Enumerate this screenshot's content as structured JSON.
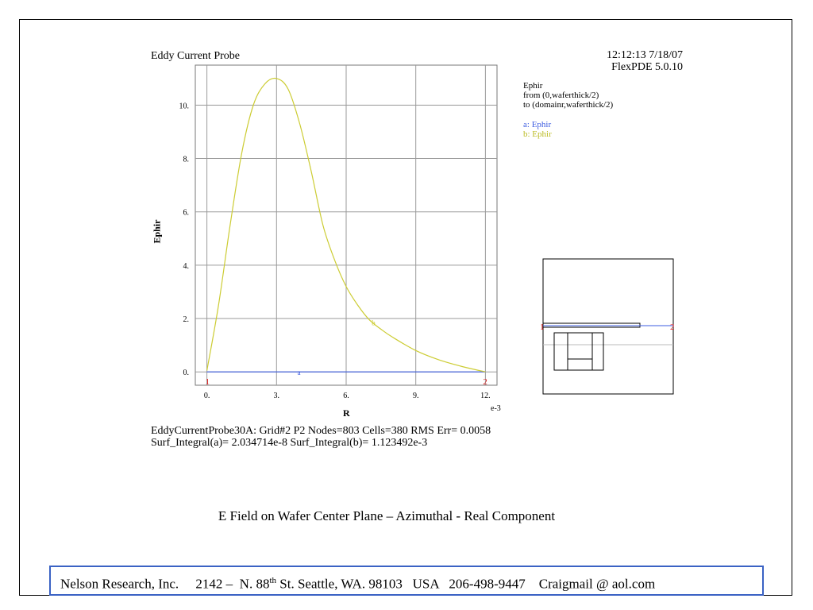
{
  "chart_data": {
    "type": "line",
    "title": "Eddy Current Probe",
    "timestamp": "12:12:13 7/18/07",
    "software": "FlexPDE 5.0.10",
    "xlabel": "R",
    "ylabel": "Ephir",
    "x_exponent": "e-3",
    "xlim": [
      -0.0005,
      0.0125
    ],
    "ylim": [
      -0.5,
      11.5
    ],
    "x_ticks": [
      0,
      0.003,
      0.006,
      0.009,
      0.012
    ],
    "x_tick_labels": [
      "0.",
      "3.",
      "6.",
      "9.",
      "12."
    ],
    "y_ticks": [
      0,
      2,
      4,
      6,
      8,
      10
    ],
    "y_tick_labels": [
      "0.",
      "2.",
      "4.",
      "6.",
      "8.",
      "10."
    ],
    "grid": true,
    "legend": {
      "heading": "Ephir",
      "from": "from (0,waferthick/2)",
      "to": "to (domainr,waferthick/2)",
      "entries": [
        "a: Ephir",
        "b: Ephir"
      ]
    },
    "series": [
      {
        "name": "a: Ephir",
        "mark": "a",
        "color": "#3d5ce0",
        "x": [
          0,
          0.012
        ],
        "y": [
          0,
          0
        ]
      },
      {
        "name": "b: Ephir",
        "mark": "b",
        "color": "#cccc33",
        "x": [
          0,
          0.0005,
          0.001,
          0.0015,
          0.002,
          0.0025,
          0.003,
          0.0035,
          0.004,
          0.0045,
          0.005,
          0.0055,
          0.006,
          0.0065,
          0.007,
          0.0075,
          0.008,
          0.009,
          0.01,
          0.011,
          0.012
        ],
        "y": [
          0.05,
          2.5,
          5.5,
          8.2,
          10.0,
          10.8,
          11.0,
          10.6,
          9.3,
          7.5,
          5.5,
          4.2,
          3.2,
          2.5,
          1.95,
          1.6,
          1.3,
          0.8,
          0.45,
          0.2,
          0.0
        ]
      }
    ],
    "endpoint_labels": [
      "1",
      "2"
    ],
    "series_color_a": "#3d5ce0",
    "series_color_b": "#cccc33",
    "endpoint_color": "#e02020",
    "stats_line1": "EddyCurrentProbe30A:  Grid#2  P2  Nodes=803 Cells=380 RMS Err= 0.0058",
    "stats_line2": "Surf_Integral(a)=  2.034714e-8 Surf_Integral(b)=  1.123492e-3"
  },
  "inset": {
    "endpoint_labels": [
      "1",
      "2"
    ]
  },
  "caption": "E Field on Wafer Center Plane – Azimuthal - Real Component",
  "footer": {
    "company": "Nelson Research, Inc.",
    "address_pre": "2142 –  N. 88",
    "address_sup": "th",
    "address_post": " St. Seattle, WA. 98103",
    "country": "USA",
    "phone": "206-498-9447",
    "email": "Craigmail @ aol.com"
  }
}
